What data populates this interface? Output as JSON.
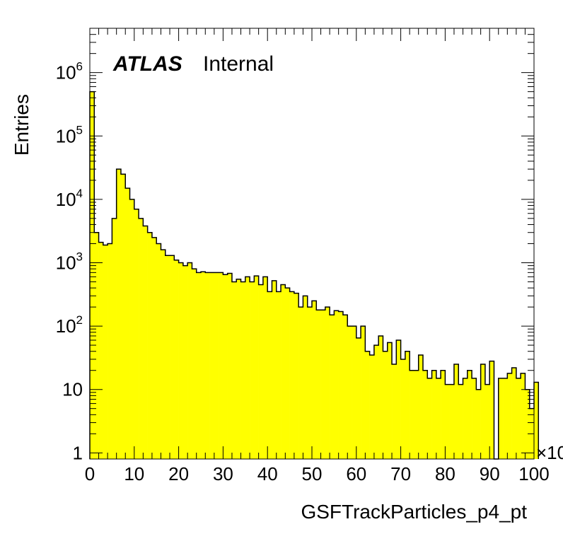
{
  "chart_data": {
    "type": "bar",
    "style": "histogram",
    "fill_color": "#ffff00",
    "line_color": "#000000",
    "label": {
      "experiment": "ATLAS",
      "status": "Internal"
    },
    "xlabel": "GSFTrackParticles_p4_pt",
    "ylabel": "Entries",
    "x_multiplier": "×10",
    "xlim": [
      0,
      100
    ],
    "ylim": [
      0.8,
      5000000
    ],
    "y_scale": "log",
    "x_ticks": [
      "0",
      "10",
      "20",
      "30",
      "40",
      "50",
      "60",
      "70",
      "80",
      "90",
      "100"
    ],
    "y_ticks": [
      {
        "base": "1",
        "exp": ""
      },
      {
        "base": "10",
        "exp": ""
      },
      {
        "base": "10",
        "exp": "2"
      },
      {
        "base": "10",
        "exp": "3"
      },
      {
        "base": "10",
        "exp": "4"
      },
      {
        "base": "10",
        "exp": "5"
      },
      {
        "base": "10",
        "exp": "6"
      }
    ],
    "bin_width": 1,
    "bin_start": 0,
    "values": [
      500000,
      3000,
      2100,
      1900,
      2000,
      5000,
      30000,
      25000,
      15000,
      10000,
      7000,
      5000,
      3800,
      3000,
      2500,
      2000,
      1600,
      1300,
      1300,
      1100,
      1000,
      900,
      1000,
      800,
      700,
      720,
      700,
      700,
      700,
      700,
      650,
      680,
      500,
      550,
      500,
      600,
      500,
      620,
      450,
      600,
      350,
      520,
      350,
      450,
      400,
      350,
      330,
      200,
      300,
      200,
      250,
      180,
      180,
      200,
      150,
      175,
      170,
      150,
      100,
      100,
      65,
      100,
      40,
      35,
      50,
      70,
      40,
      55,
      25,
      60,
      30,
      40,
      20,
      20,
      35,
      20,
      15,
      20,
      15,
      20,
      12,
      12,
      25,
      12,
      15,
      20,
      15,
      10,
      25,
      12,
      28,
      0,
      15,
      15,
      18,
      22,
      15,
      18,
      10,
      5,
      13
    ]
  }
}
